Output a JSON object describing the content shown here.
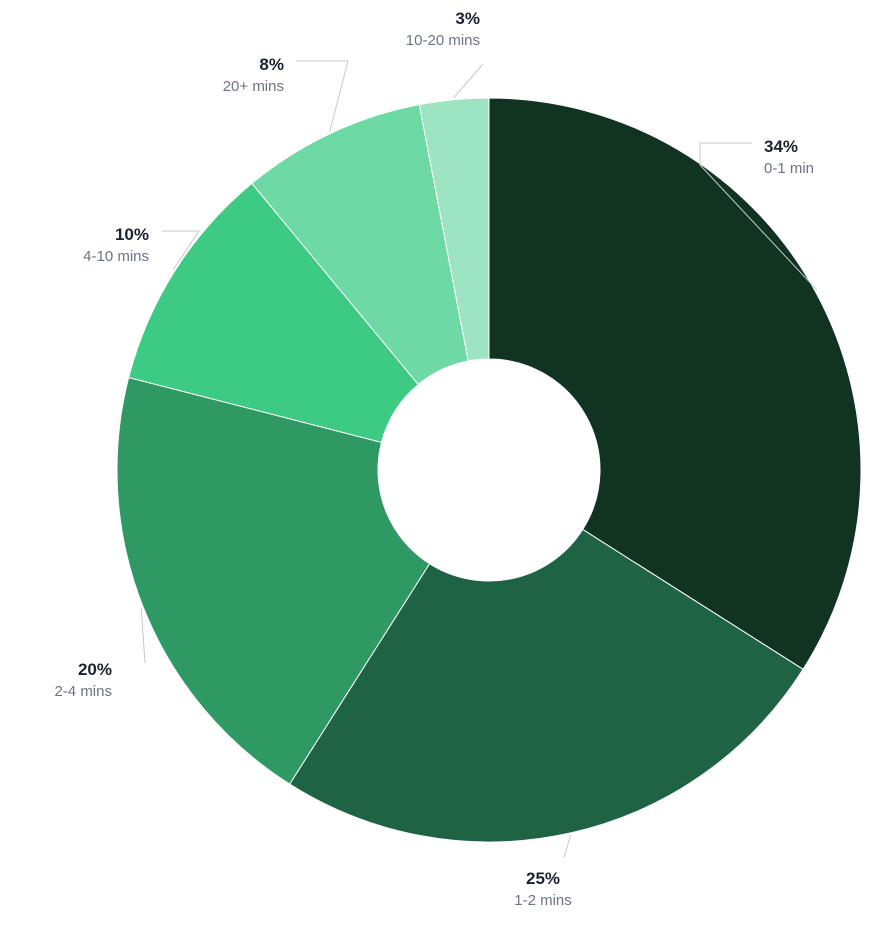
{
  "chart_data": {
    "type": "pie",
    "donut": true,
    "categories": [
      "0-1 min",
      "1-2 mins",
      "2-4 mins",
      "4-10 mins",
      "20+ mins",
      "10-20 mins"
    ],
    "values": [
      34,
      25,
      20,
      10,
      8,
      3
    ],
    "value_labels": [
      "34%",
      "25%",
      "20%",
      "10%",
      "8%",
      "3%"
    ],
    "colors": [
      "#113321",
      "#1e6344",
      "#2e9963",
      "#3dcb84",
      "#6dd9a5",
      "#9ce4c2"
    ],
    "legend": "none",
    "start_angle": "12 o'clock, clockwise"
  }
}
